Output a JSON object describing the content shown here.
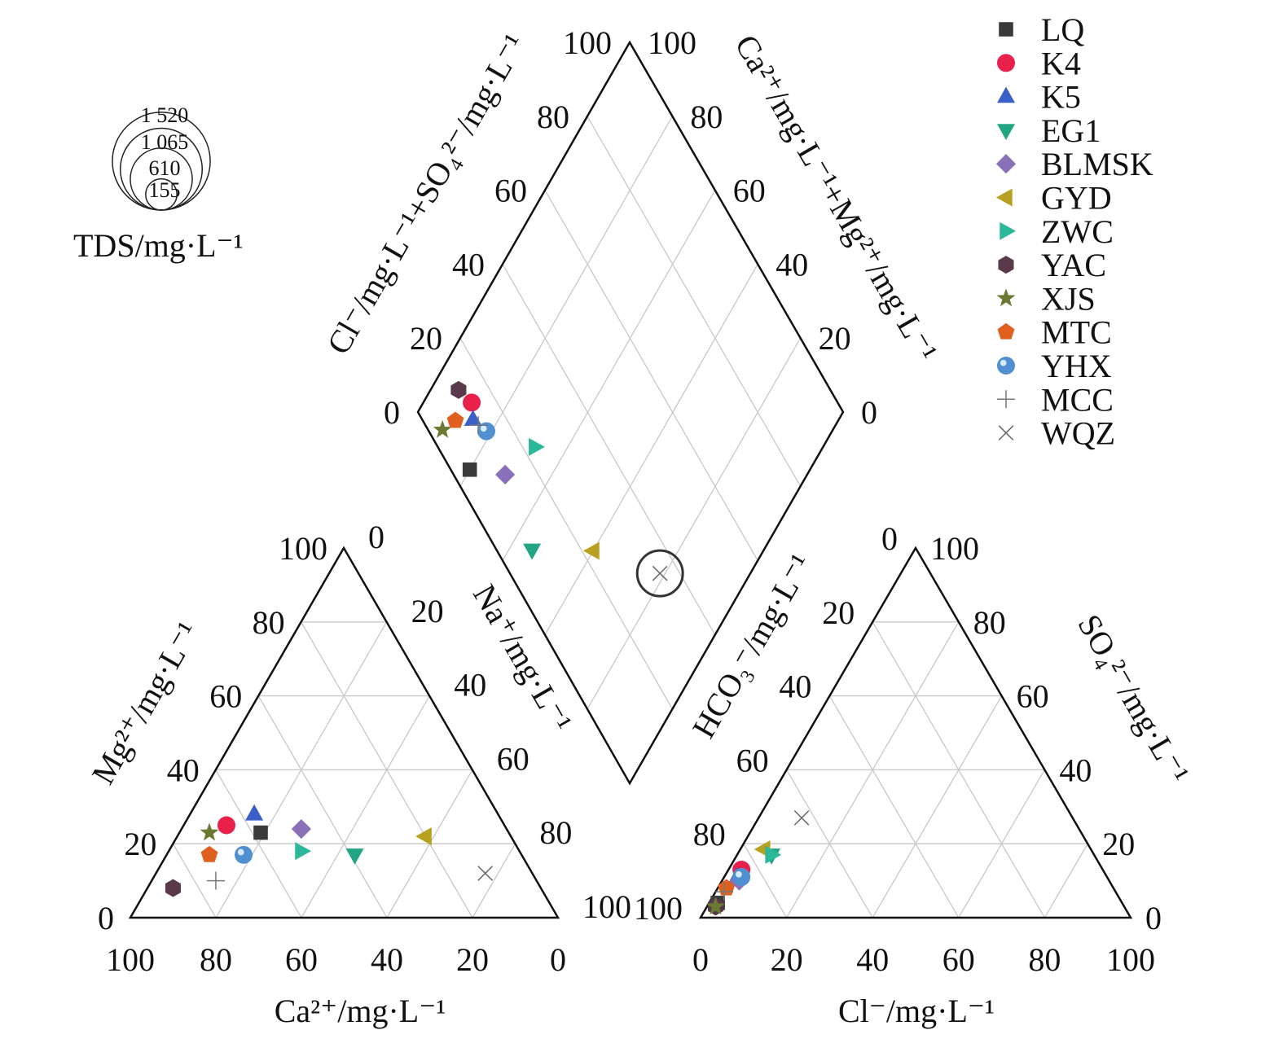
{
  "chart_data": {
    "type": "scatter",
    "subtype": "piper-diagram",
    "axes": {
      "cation_ca": "Ca²⁺/mg·L⁻¹",
      "cation_mg": "Mg²⁺/mg·L⁻¹",
      "cation_na": "Na⁺/mg·L⁻¹",
      "anion_cl": "Cl⁻/mg·L⁻¹",
      "anion_so4": "SO₄²⁻/mg·L⁻¹",
      "anion_hco3": "HCO₃⁻/mg·L⁻¹",
      "diamond_left": "Cl⁻/mg·L⁻¹+SO₄²⁻/mg·L⁻¹",
      "diamond_right": "Ca²⁺/mg·L⁻¹+Mg²⁺/mg·L⁻¹"
    },
    "ticks": [
      "0",
      "20",
      "40",
      "60",
      "80",
      "100"
    ],
    "grid": true,
    "tds_legend": {
      "title": "TDS/mg·L⁻¹",
      "values": [
        1520,
        1065,
        610,
        155
      ],
      "labels": [
        "1 520",
        "1 065",
        "610",
        "155"
      ]
    },
    "legend_position": "top-right",
    "samples": [
      {
        "name": "LQ",
        "marker": "square",
        "color": "#3a3a3a",
        "cation": {
          "Ca": 58,
          "Mg": 23,
          "Na": 19
        },
        "anion": {
          "HCO3": 94,
          "SO4": 4,
          "Cl": 2
        },
        "diamond": {
          "ClSO4": 4.5,
          "NaK": 20
        }
      },
      {
        "name": "K4",
        "marker": "circle",
        "color": "#e8204a",
        "cation": {
          "Ca": 65,
          "Mg": 25,
          "Na": 10
        },
        "anion": {
          "HCO3": 84,
          "SO4": 13,
          "Cl": 3
        },
        "diamond": {
          "ClSO4": 14,
          "NaK": 11.4
        }
      },
      {
        "name": "K5",
        "marker": "triangle-up",
        "color": "#3a5fc8",
        "cation": {
          "Ca": 57,
          "Mg": 28,
          "Na": 15
        },
        "anion": {
          "HCO3": 86,
          "SO4": 11,
          "Cl": 3
        },
        "diamond": {
          "ClSO4": 12,
          "NaK": 14
        }
      },
      {
        "name": "EG1",
        "marker": "triangle-down",
        "color": "#22a585",
        "cation": {
          "Ca": 39,
          "Mg": 17,
          "Na": 44
        },
        "anion": {
          "HCO3": 75,
          "SO4": 17,
          "Cl": 8
        },
        "diamond": {
          "ClSO4": 8.4,
          "NaK": 45.5
        }
      },
      {
        "name": "BLMSK",
        "marker": "diamond",
        "color": "#8a70b8",
        "cation": {
          "Ca": 48,
          "Mg": 24,
          "Na": 28
        },
        "anion": {
          "HCO3": 86,
          "SO4": 10,
          "Cl": 4
        },
        "diamond": {
          "ClSO4": 12.2,
          "NaK": 29
        }
      },
      {
        "name": "GYD",
        "marker": "triangle-left",
        "color": "#b8a020",
        "cation": {
          "Ca": 20,
          "Mg": 22,
          "Na": 58
        },
        "anion": {
          "HCO3": 76,
          "SO4": 18.5,
          "Cl": 5.5
        },
        "diamond": {
          "ClSO4": 22.7,
          "NaK": 60
        }
      },
      {
        "name": "ZWC",
        "marker": "triangle-right",
        "color": "#2ab898",
        "cation": {
          "Ca": 51,
          "Mg": 18,
          "Na": 31
        },
        "anion": {
          "HCO3": 75,
          "SO4": 17,
          "Cl": 8
        },
        "diamond": {
          "ClSO4": 23,
          "NaK": 32.3
        }
      },
      {
        "name": "YAC",
        "marker": "hexagon",
        "color": "#5a3a4a",
        "cation": {
          "Ca": 86,
          "Mg": 8,
          "Na": 6
        },
        "anion": {
          "HCO3": 95,
          "SO4": 3,
          "Cl": 2
        },
        "diamond": {
          "ClSO4": 12.6,
          "NaK": 6.6
        }
      },
      {
        "name": "XJS",
        "marker": "star",
        "color": "#6a7a30",
        "cation": {
          "Ca": 70,
          "Mg": 23,
          "Na": 7
        },
        "anion": {
          "HCO3": 95,
          "SO4": 3,
          "Cl": 2
        },
        "diamond": {
          "ClSO4": 3.4,
          "NaK": 8.2
        }
      },
      {
        "name": "MTC",
        "marker": "pentagon",
        "color": "#e06020",
        "cation": {
          "Ca": 73,
          "Mg": 17,
          "Na": 10
        },
        "anion": {
          "HCO3": 90,
          "SO4": 8,
          "Cl": 2
        },
        "diamond": {
          "ClSO4": 7.7,
          "NaK": 10
        }
      },
      {
        "name": "YHX",
        "marker": "sphere",
        "color": "#5090d0",
        "cation": {
          "Ca": 65,
          "Mg": 17,
          "Na": 18
        },
        "anion": {
          "HCO3": 85,
          "SO4": 11,
          "Cl": 4
        },
        "diamond": {
          "ClSO4": 13.6,
          "NaK": 18.7
        }
      },
      {
        "name": "MCC",
        "marker": "plus",
        "color": "#777777",
        "cation": {
          "Ca": 75,
          "Mg": 10,
          "Na": 15
        },
        "anion": {
          "HCO3": 91,
          "SO4": 7,
          "Cl": 2
        },
        "diamond": {
          "ClSO4": 12.5,
          "NaK": 16
        }
      },
      {
        "name": "WQZ",
        "marker": "cross",
        "color": "#666666",
        "tds": 330,
        "cation": {
          "Ca": 11,
          "Mg": 12,
          "Na": 77
        },
        "anion": {
          "HCO3": 63,
          "SO4": 27,
          "Cl": 10
        },
        "diamond": {
          "ClSO4": 35.5,
          "NaK": 78.8
        }
      }
    ]
  }
}
